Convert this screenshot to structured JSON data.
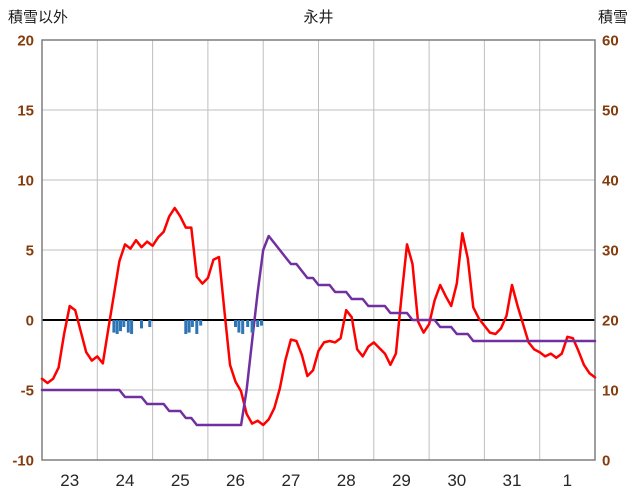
{
  "header": {
    "left_label": "積雪以外",
    "title": "永井",
    "right_label": "積雪"
  },
  "chart_data": {
    "type": "line",
    "title": "永井",
    "x_unit": "days (23 Dec – 1 Jan), index 0–10",
    "x_range": [
      0,
      10
    ],
    "x_labels": [
      "23",
      "24",
      "25",
      "26",
      "27",
      "28",
      "29",
      "30",
      "31",
      "1"
    ],
    "grid": true,
    "legend": "none",
    "left_axis": {
      "label": "積雪以外",
      "min": -10,
      "max": 20,
      "ticks": [
        20,
        15,
        10,
        5,
        0,
        -5,
        -10
      ]
    },
    "right_axis": {
      "label": "積雪",
      "min": 0,
      "max": 60,
      "ticks": [
        60,
        50,
        40,
        30,
        20,
        10,
        0
      ]
    },
    "colors": {
      "red_line": "#ff0000",
      "purple_line": "#7030a0",
      "blue_bar": "#2e75b6",
      "grid": "#bfbfbf",
      "border": "#7f7f7f",
      "zero_line": "#000000",
      "y_tick_text": "#843c0c",
      "x_tick_text": "#262626"
    },
    "series": [
      {
        "id": "red_line",
        "kind": "line",
        "axis": "left",
        "color": "#ff0000",
        "t_start": 0,
        "t_step": 0.1,
        "values": [
          -4.2,
          -4.5,
          -4.2,
          -3.4,
          -1.0,
          1.0,
          0.7,
          -0.8,
          -2.3,
          -2.9,
          -2.6,
          -3.1,
          -0.6,
          1.8,
          4.2,
          5.4,
          5.1,
          5.7,
          5.2,
          5.6,
          5.3,
          5.9,
          6.3,
          7.4,
          8.0,
          7.4,
          6.6,
          6.6,
          3.1,
          2.6,
          3.0,
          4.3,
          4.5,
          0.6,
          -3.2,
          -4.4,
          -5.1,
          -6.7,
          -7.4,
          -7.2,
          -7.5,
          -7.1,
          -6.3,
          -4.9,
          -2.9,
          -1.4,
          -1.5,
          -2.5,
          -4.0,
          -3.6,
          -2.2,
          -1.6,
          -1.5,
          -1.6,
          -1.3,
          0.7,
          0.2,
          -2.1,
          -2.6,
          -1.9,
          -1.6,
          -2.0,
          -2.4,
          -3.2,
          -2.4,
          1.6,
          5.4,
          4.0,
          -0.1,
          -0.9,
          -0.3,
          1.4,
          2.5,
          1.7,
          1.0,
          2.6,
          6.2,
          4.4,
          0.9,
          0.1,
          -0.4,
          -0.9,
          -1.0,
          -0.6,
          0.3,
          2.5,
          1.0,
          -0.3,
          -1.6,
          -2.1,
          -2.3,
          -2.6,
          -2.4,
          -2.7,
          -2.4,
          -1.2,
          -1.3,
          -2.2,
          -3.2,
          -3.8,
          -4.1
        ]
      },
      {
        "id": "purple_line",
        "kind": "line",
        "axis": "right",
        "color": "#7030a0",
        "t_start": 0,
        "t_step": 0.1,
        "values": [
          10,
          10,
          10,
          10,
          10,
          10,
          10,
          10,
          10,
          10,
          10,
          10,
          10,
          10,
          10,
          9,
          9,
          9,
          9,
          8,
          8,
          8,
          8,
          7,
          7,
          7,
          6,
          6,
          5,
          5,
          5,
          5,
          5,
          5,
          5,
          5,
          5,
          10,
          17,
          24,
          30,
          32,
          31,
          30,
          29,
          28,
          28,
          27,
          26,
          26,
          25,
          25,
          25,
          24,
          24,
          24,
          23,
          23,
          23,
          22,
          22,
          22,
          22,
          21,
          21,
          21,
          21,
          20,
          20,
          20,
          20,
          20,
          19,
          19,
          19,
          18,
          18,
          18,
          17,
          17,
          17,
          17,
          17,
          17,
          17,
          17,
          17,
          17,
          17,
          17,
          17,
          17,
          17,
          17,
          17,
          17,
          17,
          17,
          17,
          17,
          17
        ]
      },
      {
        "id": "blue_bars",
        "kind": "bar-down",
        "axis": "left",
        "color": "#2e75b6",
        "points": [
          [
            1.3,
            0.9
          ],
          [
            1.36,
            1.0
          ],
          [
            1.42,
            0.8
          ],
          [
            1.48,
            0.5
          ],
          [
            1.56,
            0.9
          ],
          [
            1.62,
            1.0
          ],
          [
            1.8,
            0.6
          ],
          [
            1.95,
            0.5
          ],
          [
            2.6,
            1.0
          ],
          [
            2.66,
            0.9
          ],
          [
            2.72,
            0.5
          ],
          [
            2.8,
            1.0
          ],
          [
            2.87,
            0.4
          ],
          [
            3.5,
            0.5
          ],
          [
            3.56,
            0.9
          ],
          [
            3.63,
            1.0
          ],
          [
            3.72,
            0.5
          ],
          [
            3.8,
            0.9
          ],
          [
            3.9,
            0.5
          ],
          [
            3.97,
            0.4
          ]
        ]
      }
    ]
  }
}
